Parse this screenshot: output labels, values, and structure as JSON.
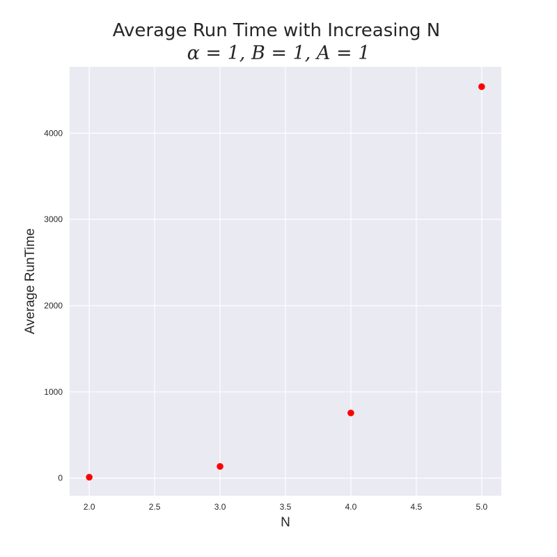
{
  "chart_data": {
    "type": "scatter",
    "title": "Average Run Time with Increasing N",
    "subtitle": "α = 1, B = 1, A = 1",
    "xlabel": "N",
    "ylabel": "Average RunTime",
    "xlim": [
      1.85,
      5.15
    ],
    "ylim": [
      -205,
      4770
    ],
    "xticks": [
      2.0,
      2.5,
      3.0,
      3.5,
      4.0,
      4.5,
      5.0
    ],
    "xtick_labels": [
      "2.0",
      "2.5",
      "3.0",
      "3.5",
      "4.0",
      "4.5",
      "5.0"
    ],
    "yticks": [
      0,
      1000,
      2000,
      3000,
      4000
    ],
    "ytick_labels": [
      "0",
      "1000",
      "2000",
      "3000",
      "4000"
    ],
    "grid": true,
    "legend": "none",
    "background_color": "#eaeaf2",
    "grid_color": "#ffffff",
    "marker_color": "#ff0000",
    "series": [
      {
        "x": [
          2,
          3,
          4,
          5
        ],
        "y": [
          10,
          135,
          755,
          4540
        ]
      }
    ]
  }
}
